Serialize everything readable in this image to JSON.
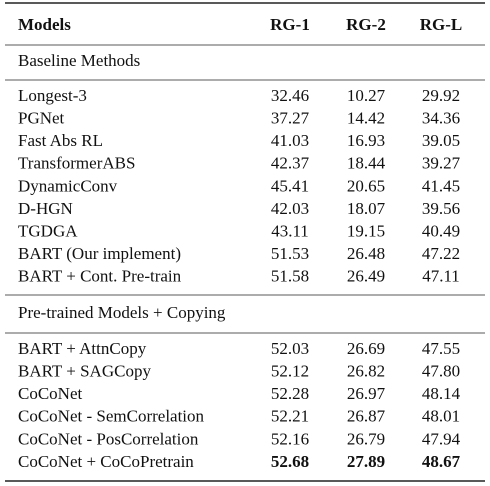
{
  "table": {
    "header": [
      "Models",
      "RG-1",
      "RG-2",
      "RG-L"
    ],
    "sections": [
      {
        "title": "Baseline Methods",
        "rows": [
          [
            "Longest-3",
            "32.46",
            "10.27",
            "29.92"
          ],
          [
            "PGNet",
            "37.27",
            "14.42",
            "34.36"
          ],
          [
            "Fast Abs RL",
            "41.03",
            "16.93",
            "39.05"
          ],
          [
            "TransformerABS",
            "42.37",
            "18.44",
            "39.27"
          ],
          [
            "DynamicConv",
            "45.41",
            "20.65",
            "41.45"
          ],
          [
            "D-HGN",
            "42.03",
            "18.07",
            "39.56"
          ],
          [
            "TGDGA",
            "43.11",
            "19.15",
            "40.49"
          ],
          [
            "BART (Our implement)",
            "51.53",
            "26.48",
            "47.22"
          ],
          [
            "BART + Cont. Pre-train",
            "51.58",
            "26.49",
            "47.11"
          ]
        ]
      },
      {
        "title": "Pre-trained Models + Copying",
        "rows": [
          [
            "BART + AttnCopy",
            "52.03",
            "26.69",
            "47.55"
          ],
          [
            "BART + SAGCopy",
            "52.12",
            "26.82",
            "47.80"
          ],
          [
            "CoCoNet",
            "52.28",
            "26.97",
            "48.14"
          ],
          [
            "CoCoNet - SemCorrelation",
            "52.21",
            "26.87",
            "48.01"
          ],
          [
            "CoCoNet - PosCorrelation",
            "52.16",
            "26.79",
            "47.94"
          ],
          [
            "CoCoNet + CoCoPretrain",
            "52.68",
            "27.89",
            "48.67"
          ]
        ]
      }
    ]
  }
}
